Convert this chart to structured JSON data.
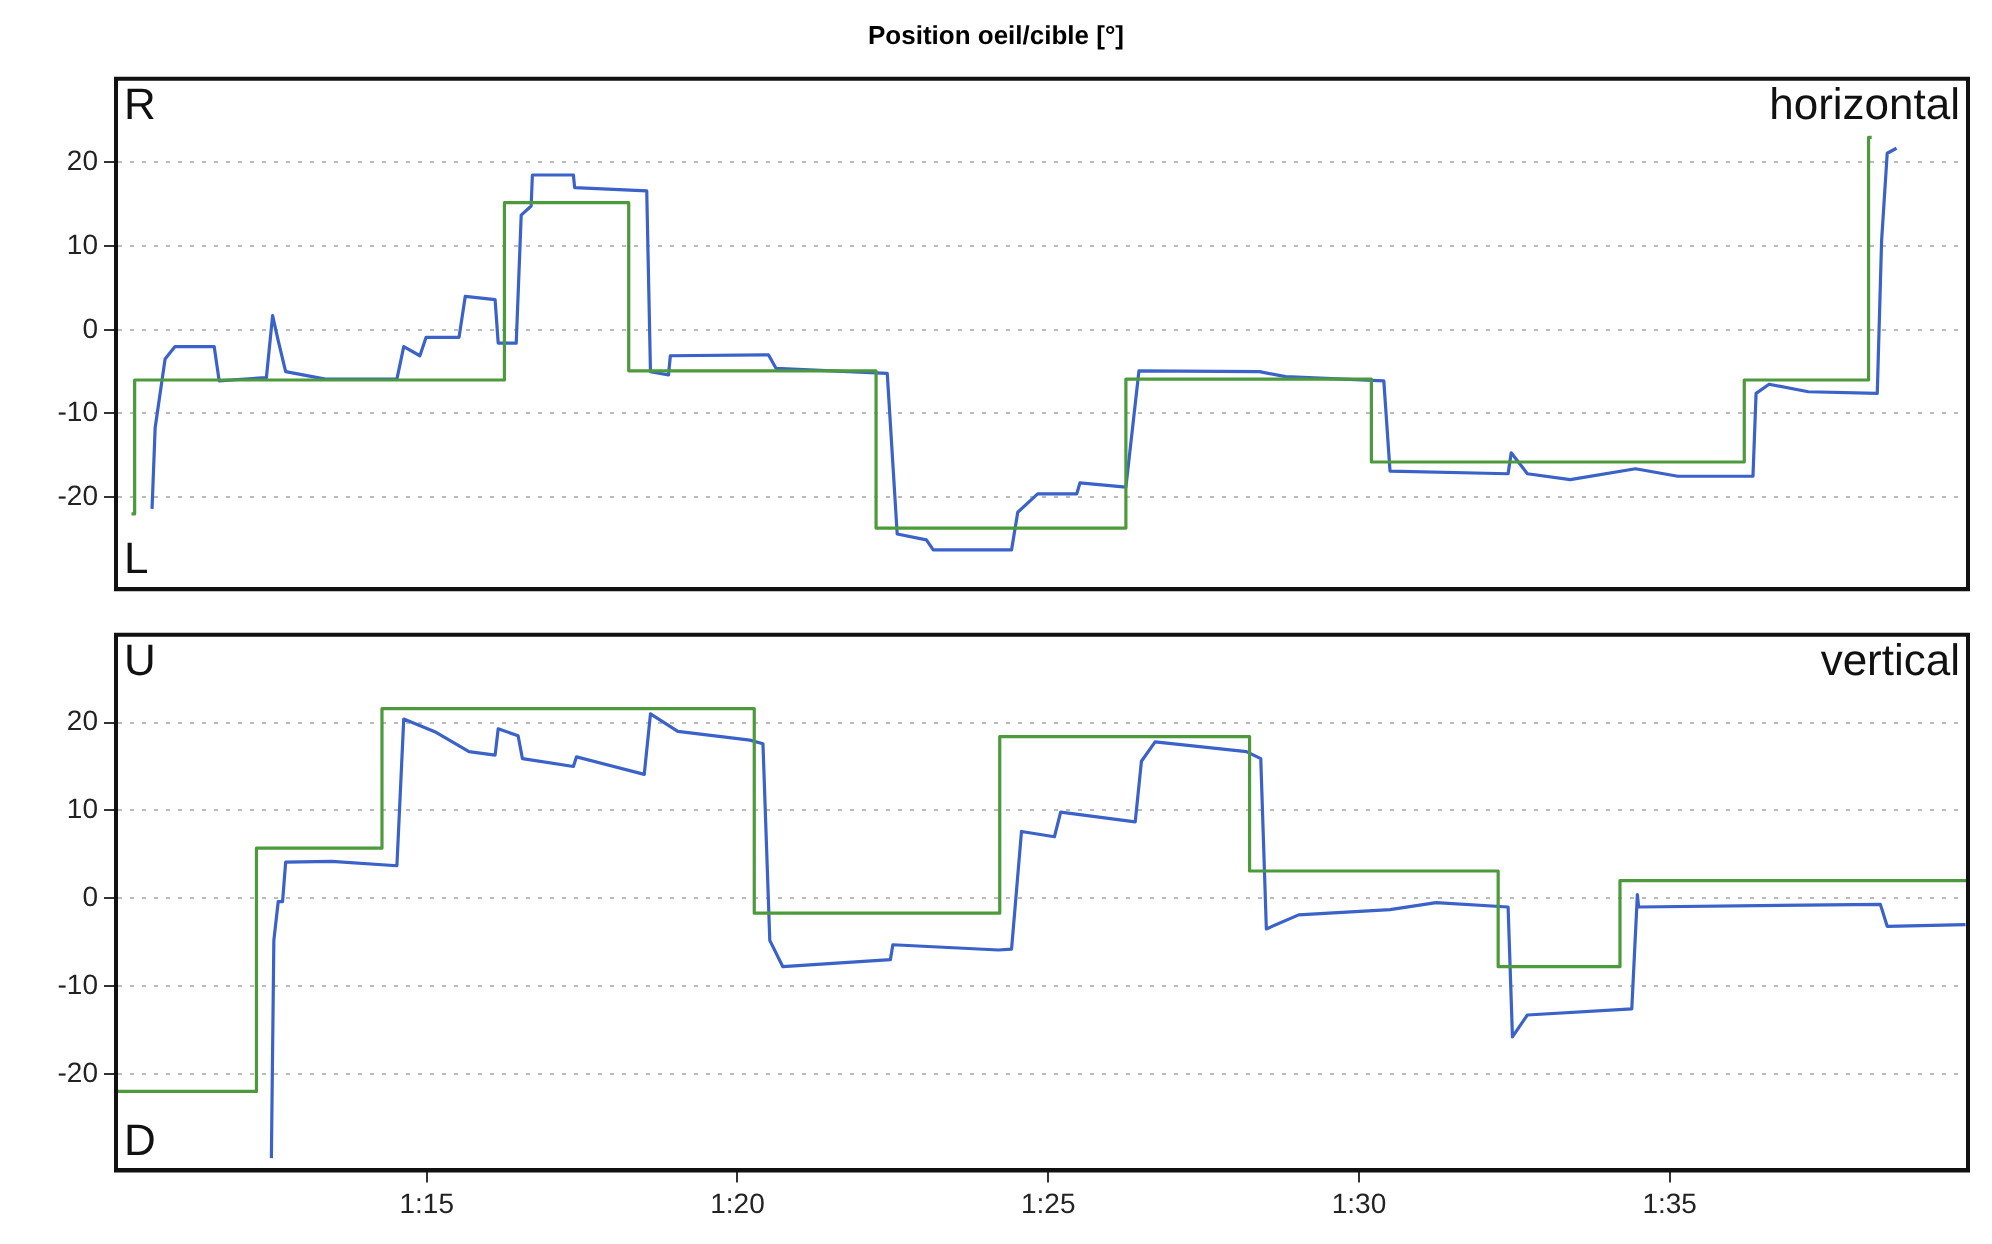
{
  "chart_data": [
    {
      "type": "line",
      "title": "Position oeil/cible [°]",
      "annotations": [
        "R",
        "L",
        "horizontal"
      ],
      "xlim": [
        70,
        99.8
      ],
      "ylim": [
        -31,
        30
      ],
      "yticks": [
        -20,
        -10,
        0,
        10,
        20
      ],
      "grid": "y",
      "tick_labels": "y",
      "marker": "none",
      "series": [
        {
          "type": "step",
          "color": "#4c9a3c",
          "x": [
            70.25,
            70.3,
            76.25,
            78.25,
            82.23,
            86.25,
            90.2,
            96.2,
            98.2,
            98.25
          ],
          "values": [
            -22,
            -6,
            15.2,
            -4.9,
            -23.7,
            -5.9,
            -15.8,
            -6,
            23,
            23
          ]
        },
        {
          "color": "#3a62c8",
          "x": [
            70.58,
            70.63,
            70.79,
            70.95,
            71.58,
            71.66,
            72.42,
            72.52,
            72.61,
            72.73,
            73.37,
            74.52,
            74.63,
            74.89,
            74.99,
            75.52,
            75.62,
            76.1,
            76.15,
            76.44,
            76.52,
            76.68,
            76.7,
            77.36,
            77.38,
            78.54,
            78.6,
            78.89,
            78.92,
            80.5,
            80.62,
            82.41,
            82.57,
            83.04,
            83.15,
            84.2,
            84.41,
            84.51,
            84.83,
            85.46,
            85.51,
            86.25,
            86.46,
            88.4,
            88.82,
            90.4,
            90.5,
            92.4,
            92.45,
            92.71,
            93.4,
            94.45,
            95.13,
            96.34,
            96.39,
            96.6,
            97.23,
            98.34,
            98.41,
            98.5,
            98.65
          ],
          "values": [
            -21.4,
            -11.7,
            -3.5,
            -2,
            -2,
            -6.1,
            -5.7,
            1.7,
            -1.3,
            -5,
            -5.9,
            -5.9,
            -2,
            -3.1,
            -0.9,
            -0.9,
            4,
            3.6,
            -1.6,
            -1.6,
            13.7,
            14.8,
            18.5,
            18.5,
            17,
            16.6,
            -5,
            -5.4,
            -3.1,
            -3,
            -4.6,
            -5.2,
            -24.4,
            -25.1,
            -26.3,
            -26.3,
            -26.3,
            -21.8,
            -19.6,
            -19.6,
            -18.3,
            -18.8,
            -4.9,
            -5,
            -5.6,
            -6.1,
            -16.9,
            -17.2,
            -14.7,
            -17.2,
            -17.9,
            -16.6,
            -17.5,
            -17.5,
            -7.6,
            -6.5,
            -7.4,
            -7.6,
            10.7,
            21.1,
            21.7
          ]
        }
      ]
    },
    {
      "type": "line",
      "annotations": [
        "U",
        "D",
        "vertical"
      ],
      "xlim": [
        70,
        99.8
      ],
      "ylim": [
        -31,
        30
      ],
      "yticks": [
        -20,
        -10,
        0,
        10,
        20
      ],
      "xticks": [
        {
          "value": 75,
          "label": "1:15"
        },
        {
          "value": 80,
          "label": "1:20"
        },
        {
          "value": 85,
          "label": "1:25"
        },
        {
          "value": 90,
          "label": "1:30"
        },
        {
          "value": 95,
          "label": "1:35"
        }
      ],
      "grid": "y",
      "marker": "none",
      "series": [
        {
          "type": "step",
          "color": "#4c9a3c",
          "x": [
            70,
            72.26,
            74.28,
            80.27,
            84.22,
            88.24,
            92.24,
            94.2,
            99.8
          ],
          "values": [
            -22,
            5.7,
            21.6,
            -1.7,
            18.4,
            3.1,
            -7.8,
            2,
            1.9
          ]
        },
        {
          "color": "#3a62c8",
          "x": [
            72.5,
            72.54,
            72.61,
            72.68,
            72.73,
            73.47,
            74.52,
            74.63,
            75.15,
            75.68,
            76.1,
            76.15,
            76.47,
            76.54,
            77.36,
            77.41,
            78.5,
            78.6,
            79.04,
            80.2,
            80.41,
            80.52,
            80.73,
            82.46,
            82.5,
            84.2,
            84.41,
            84.57,
            85.1,
            85.2,
            86.4,
            86.5,
            86.72,
            88.19,
            88.42,
            88.51,
            89.03,
            90.5,
            91.24,
            92.4,
            92.47,
            92.71,
            94.39,
            94.48,
            94.5,
            98.39,
            98.5,
            99.76
          ],
          "values": [
            -29.6,
            -4.8,
            -0.4,
            -0.4,
            4.1,
            4.2,
            3.7,
            20.4,
            18.9,
            16.7,
            16.3,
            19.3,
            18.5,
            15.9,
            15,
            16.1,
            14.1,
            21,
            19,
            18,
            17.6,
            -4.8,
            -7.8,
            -7,
            -5.3,
            -5.9,
            -5.8,
            7.6,
            7,
            9.8,
            8.7,
            15.6,
            17.8,
            16.7,
            15.9,
            -3.5,
            -1.9,
            -1.3,
            -0.5,
            -1,
            -15.8,
            -13.3,
            -12.6,
            0.4,
            -1,
            -0.7,
            -3.2,
            -3
          ]
        }
      ]
    }
  ]
}
